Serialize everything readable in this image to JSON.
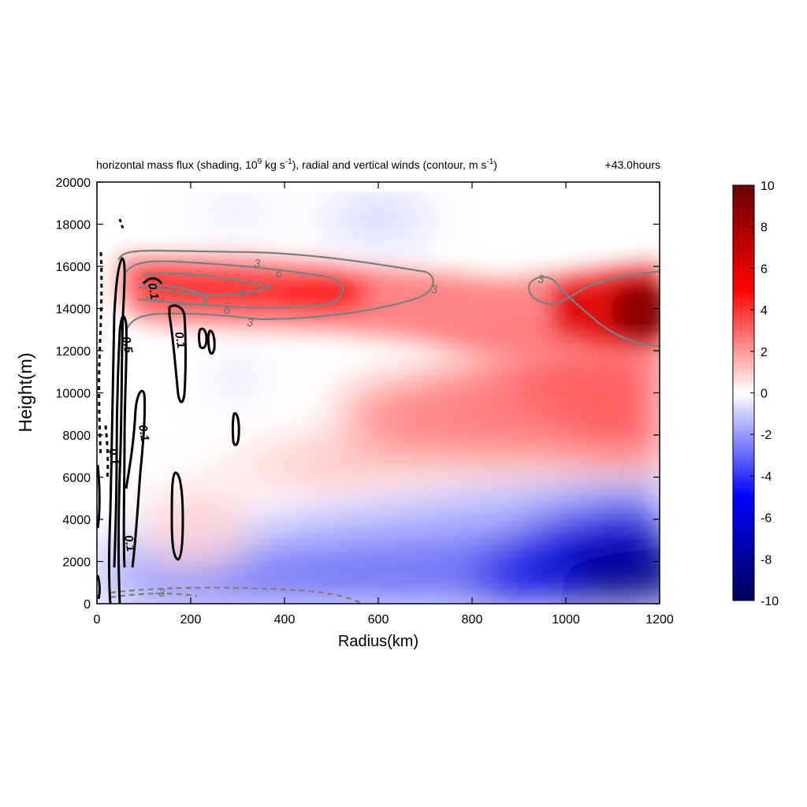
{
  "chart_data": {
    "type": "heatmap",
    "title": "horizontal mass flux (shading, 10",
    "title_parts": {
      "t1": "horizontal mass flux (shading, 10",
      "sup1": "9",
      "t2": " kg s",
      "sup2": "-1",
      "t3": "), radial and vertical winds (contour, m s",
      "sup3": "-1",
      "t4": ")"
    },
    "time_label": "+43.0hours",
    "xlabel": "Radius(km)",
    "ylabel": "Height(m)",
    "xlim": [
      0,
      1200
    ],
    "ylim": [
      0,
      20000
    ],
    "x_ticks": [
      0,
      200,
      400,
      600,
      800,
      1000,
      1200
    ],
    "y_ticks": [
      0,
      2000,
      4000,
      6000,
      8000,
      10000,
      12000,
      14000,
      16000,
      18000,
      20000
    ],
    "colorbar": {
      "range": [
        -10,
        10
      ],
      "ticks": [
        10,
        8,
        6,
        4,
        2,
        0,
        -2,
        -4,
        -6,
        -8,
        -10
      ],
      "colors": [
        "#00005a",
        "#0000ff",
        "#ffffff",
        "#ff0000",
        "#6a0000"
      ]
    },
    "shading_features": [
      {
        "kind": "positive-outflow",
        "x_range": [
          40,
          1200
        ],
        "y_range": [
          12000,
          16500
        ],
        "peak": 9.5,
        "peak_at": [
          1190,
          14000
        ]
      },
      {
        "kind": "positive-midlevel",
        "x_range": [
          250,
          1200
        ],
        "y_range": [
          6000,
          12000
        ],
        "peak": 5,
        "peak_at": [
          1100,
          10500
        ]
      },
      {
        "kind": "negative-inflow",
        "x_range": [
          0,
          1200
        ],
        "y_range": [
          0,
          6000
        ],
        "peak": -10,
        "peak_at": [
          1180,
          800
        ]
      }
    ],
    "contour_labels": {
      "radial_wind": [
        "3",
        "6",
        "9",
        "6",
        "3",
        "3",
        "3",
        "-3"
      ],
      "vertical_wind": [
        "0.1",
        "0.1",
        "0.5",
        "0.1",
        "0.1",
        "0.1"
      ]
    }
  }
}
